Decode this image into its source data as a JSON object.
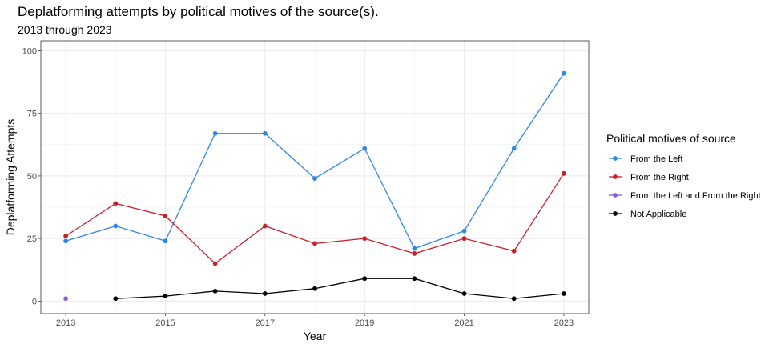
{
  "chart_data": {
    "type": "line",
    "title": "Deplatforming attempts by political motives of the source(s).",
    "subtitle": "2013 through 2023",
    "xlabel": "Year",
    "ylabel": "Deplatforming Attempts",
    "xlim": [
      2012.5,
      2023.5
    ],
    "ylim": [
      -5,
      104
    ],
    "xticks": [
      2013,
      2015,
      2017,
      2019,
      2021,
      2023
    ],
    "yticks": [
      0,
      25,
      50,
      75,
      100
    ],
    "grid": true,
    "legend": {
      "title": "Political motives of source",
      "position": "right"
    },
    "series": [
      {
        "name": "From the Left",
        "color": "#2f86e8",
        "x": [
          2013,
          2014,
          2015,
          2016,
          2017,
          2018,
          2019,
          2020,
          2021,
          2022,
          2023
        ],
        "values": [
          24,
          30,
          24,
          67,
          67,
          49,
          61,
          21,
          28,
          61,
          91
        ]
      },
      {
        "name": "From the Right",
        "color": "#c8202a",
        "x": [
          2013,
          2014,
          2015,
          2016,
          2017,
          2018,
          2019,
          2020,
          2021,
          2022,
          2023
        ],
        "values": [
          26,
          39,
          34,
          15,
          30,
          23,
          25,
          19,
          25,
          20,
          51
        ]
      },
      {
        "name": "From the Left and From the Right",
        "color": "#8b5cd6",
        "x": [
          2013
        ],
        "values": [
          1
        ]
      },
      {
        "name": "Not Applicable",
        "color": "#000000",
        "x": [
          2014,
          2015,
          2016,
          2017,
          2018,
          2019,
          2020,
          2021,
          2022,
          2023
        ],
        "values": [
          1,
          2,
          4,
          3,
          5,
          9,
          9,
          3,
          1,
          3
        ]
      }
    ]
  }
}
